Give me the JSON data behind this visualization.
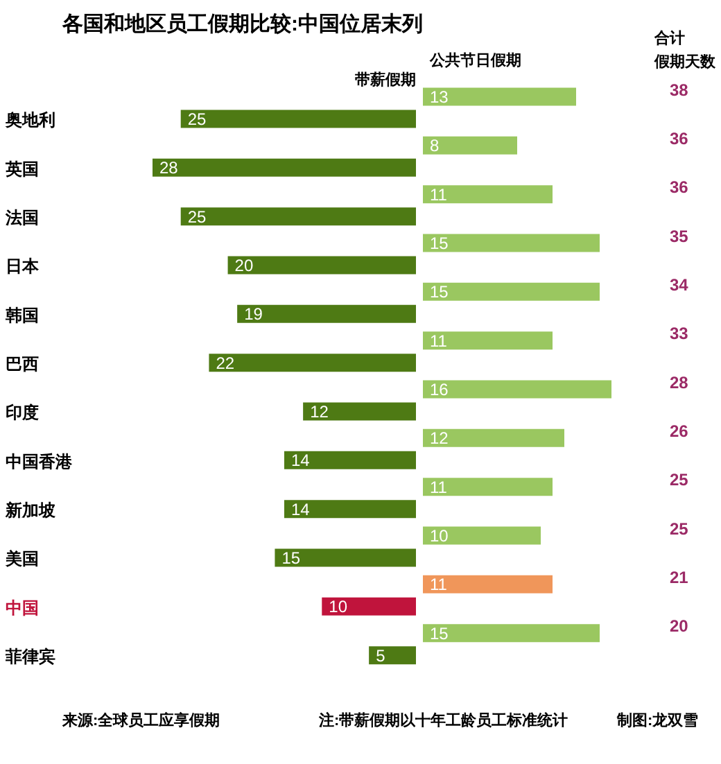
{
  "chart_data": [
    {
      "type": "bar",
      "orientation": "horizontal",
      "title": "各国和地区员工假期比较:中国位居末列",
      "categories": [
        "奥地利",
        "英国",
        "法国",
        "日本",
        "韩国",
        "巴西",
        "印度",
        "中国香港",
        "新加坡",
        "美国",
        "中国",
        "菲律宾"
      ],
      "series": [
        {
          "name": "带薪假期",
          "color": "#4e7a14",
          "colors": [
            "#4e7a14",
            "#4e7a14",
            "#4e7a14",
            "#4e7a14",
            "#4e7a14",
            "#4e7a14",
            "#4e7a14",
            "#4e7a14",
            "#4e7a14",
            "#4e7a14",
            "#c0143c",
            "#4e7a14"
          ],
          "values": [
            25,
            28,
            25,
            20,
            19,
            22,
            12,
            14,
            14,
            15,
            10,
            5
          ]
        }
      ],
      "xlim": [
        28,
        0
      ],
      "data_labels": true,
      "tick_labels": "y",
      "annotations": [
        "来源:全球员工应享假期",
        "注:带薪假期以十年工龄员工标准统计",
        "制图:龙双雪"
      ]
    },
    {
      "type": "bar",
      "orientation": "horizontal",
      "series": [
        {
          "name": "公共节日假期",
          "color": "#9ac760",
          "colors": [
            "#9ac760",
            "#9ac760",
            "#9ac760",
            "#9ac760",
            "#9ac760",
            "#9ac760",
            "#9ac760",
            "#9ac760",
            "#9ac760",
            "#9ac760",
            "#f0965a",
            "#9ac760"
          ],
          "values": [
            13,
            8,
            11,
            15,
            15,
            11,
            16,
            12,
            11,
            10,
            11,
            15
          ]
        }
      ],
      "xlim": [
        0,
        16
      ],
      "data_labels": true,
      "tick_labels": false,
      "annotations": [
        "合计",
        "假期天数",
        "38",
        "36",
        "36",
        "35",
        "34",
        "33",
        "28",
        "26",
        "25",
        "25",
        "21",
        "20"
      ]
    }
  ]
}
